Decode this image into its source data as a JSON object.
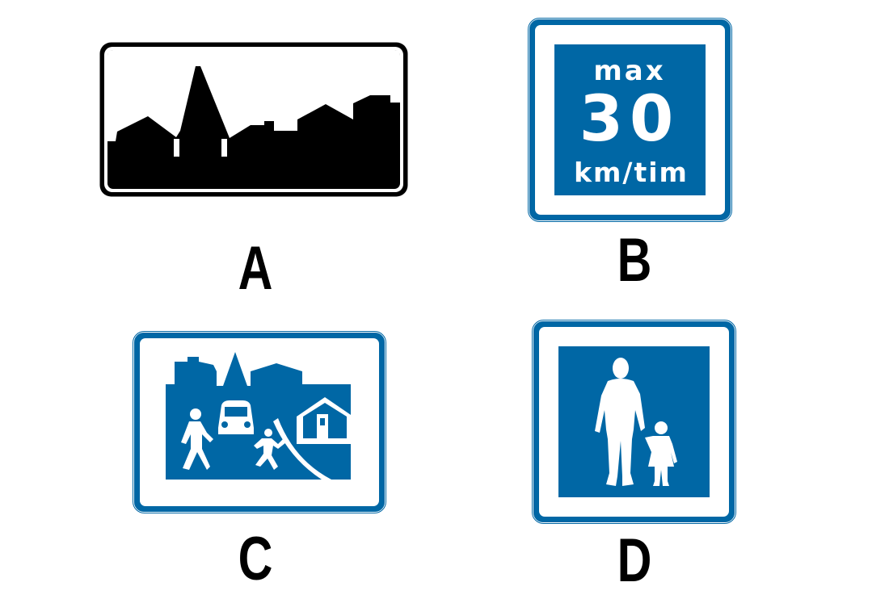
{
  "signs": [
    {
      "label": "A",
      "icon": "built-up-area-icon"
    },
    {
      "label": "B",
      "icon": "speed-limit-zone-icon",
      "text": {
        "top": "max",
        "number": "30",
        "unit": "km/tim"
      }
    },
    {
      "label": "C",
      "icon": "living-street-icon"
    },
    {
      "label": "D",
      "icon": "pedestrian-street-icon"
    }
  ],
  "colors": {
    "blue": "#0067A5",
    "black": "#000000",
    "white": "#FFFFFF"
  }
}
